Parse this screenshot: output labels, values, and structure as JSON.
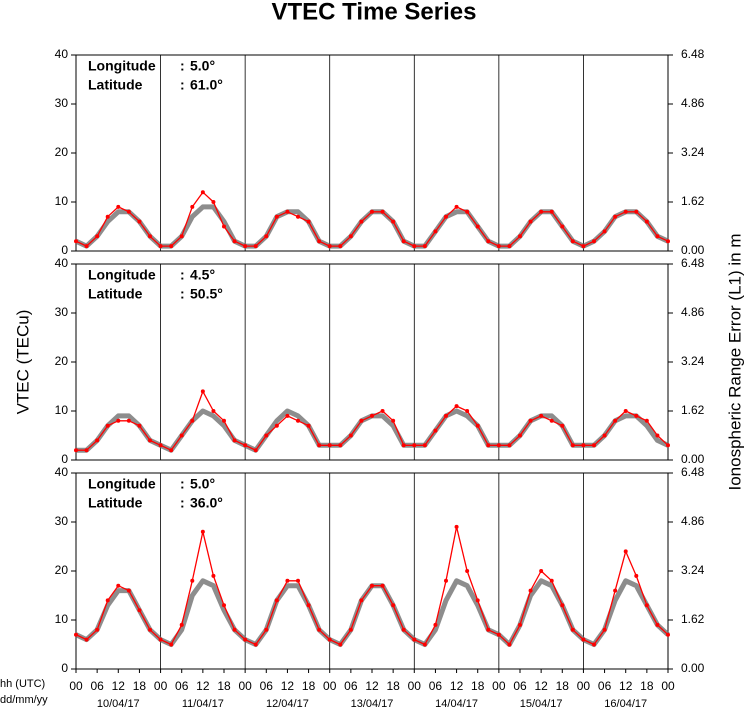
{
  "title": "VTEC Time Series",
  "y_label": "VTEC (TECu)",
  "y2_label": "Ionospheric Range Error (L1) in m",
  "x_axis": {
    "time_label": "hh (UTC)",
    "date_label": "dd/mm/yy",
    "xlim": [
      0,
      168
    ],
    "x": [
      0,
      3,
      6,
      9,
      12,
      15,
      18,
      21,
      24,
      27,
      30,
      33,
      36,
      39,
      42,
      45,
      48,
      51,
      54,
      57,
      60,
      63,
      66,
      69,
      72,
      75,
      78,
      81,
      84,
      87,
      90,
      93,
      96,
      99,
      102,
      105,
      108,
      111,
      114,
      117,
      120,
      123,
      126,
      129,
      132,
      135,
      138,
      141,
      144,
      147,
      150,
      153,
      156,
      159,
      162,
      165,
      168
    ],
    "xticks": [
      {
        "value": 0,
        "label": "00"
      },
      {
        "value": 6,
        "label": "06"
      },
      {
        "value": 12,
        "label": "12"
      },
      {
        "value": 18,
        "label": "18"
      },
      {
        "value": 24,
        "label": "00"
      },
      {
        "value": 30,
        "label": "06"
      },
      {
        "value": 36,
        "label": "12"
      },
      {
        "value": 42,
        "label": "18"
      },
      {
        "value": 48,
        "label": "00"
      },
      {
        "value": 54,
        "label": "06"
      },
      {
        "value": 60,
        "label": "12"
      },
      {
        "value": 66,
        "label": "18"
      },
      {
        "value": 72,
        "label": "00"
      },
      {
        "value": 78,
        "label": "06"
      },
      {
        "value": 84,
        "label": "12"
      },
      {
        "value": 90,
        "label": "18"
      },
      {
        "value": 96,
        "label": "00"
      },
      {
        "value": 102,
        "label": "06"
      },
      {
        "value": 108,
        "label": "12"
      },
      {
        "value": 114,
        "label": "18"
      },
      {
        "value": 120,
        "label": "00"
      },
      {
        "value": 126,
        "label": "06"
      },
      {
        "value": 132,
        "label": "12"
      },
      {
        "value": 138,
        "label": "18"
      },
      {
        "value": 144,
        "label": "00"
      },
      {
        "value": 150,
        "label": "06"
      },
      {
        "value": 156,
        "label": "12"
      },
      {
        "value": 162,
        "label": "18"
      },
      {
        "value": 168,
        "label": "00"
      }
    ],
    "dates": [
      {
        "value": 12,
        "label": "10/04/17"
      },
      {
        "value": 36,
        "label": "11/04/17"
      },
      {
        "value": 60,
        "label": "12/04/17"
      },
      {
        "value": 84,
        "label": "13/04/17"
      },
      {
        "value": 108,
        "label": "14/04/17"
      },
      {
        "value": 132,
        "label": "15/04/17"
      },
      {
        "value": 156,
        "label": "16/04/17"
      }
    ]
  },
  "chart_data": [
    {
      "type": "line",
      "annotations": [
        {
          "label": "Longitude",
          "sep": ":",
          "value": "5.0°"
        },
        {
          "label": "Latitude",
          "sep": ":",
          "value": "61.0°"
        }
      ],
      "ylim": [
        0,
        40
      ],
      "yticks": [
        0,
        10,
        20,
        30,
        40
      ],
      "y2lim": [
        0,
        6.48
      ],
      "y2ticks": [
        {
          "value": 0,
          "label": "0.00"
        },
        {
          "value": 1.62,
          "label": "1.62"
        },
        {
          "value": 3.24,
          "label": "3.24"
        },
        {
          "value": 4.86,
          "label": "4.86"
        },
        {
          "value": 6.48,
          "label": "6.48"
        }
      ],
      "series": [
        {
          "color": "#707070",
          "values": [
            2,
            1,
            3,
            6,
            8,
            8,
            6,
            3,
            1,
            1,
            3,
            7,
            9,
            9,
            6,
            2,
            1,
            1,
            3,
            7,
            8,
            8,
            6,
            2,
            1,
            1,
            3,
            6,
            8,
            8,
            6,
            2,
            1,
            1,
            4,
            7,
            8,
            8,
            5,
            2,
            1,
            1,
            3,
            6,
            8,
            8,
            5,
            2,
            1,
            2,
            4,
            7,
            8,
            8,
            6,
            3,
            2
          ]
        },
        {
          "color": "#ff0000",
          "values": [
            2,
            1,
            3,
            7,
            9,
            8,
            6,
            3,
            1,
            1,
            3,
            9,
            12,
            10,
            5,
            2,
            1,
            1,
            3,
            7,
            8,
            7,
            6,
            2,
            1,
            1,
            3,
            6,
            8,
            8,
            6,
            2,
            1,
            1,
            4,
            7,
            9,
            8,
            5,
            2,
            1,
            1,
            3,
            6,
            8,
            8,
            5,
            2,
            1,
            2,
            4,
            7,
            8,
            8,
            6,
            3,
            2
          ]
        }
      ]
    },
    {
      "type": "line",
      "annotations": [
        {
          "label": "Longitude",
          "sep": ":",
          "value": "4.5°"
        },
        {
          "label": "Latitude",
          "sep": ":",
          "value": "50.5°"
        }
      ],
      "ylim": [
        0,
        40
      ],
      "yticks": [
        0,
        10,
        20,
        30,
        40
      ],
      "y2lim": [
        0,
        6.48
      ],
      "y2ticks": [
        {
          "value": 0,
          "label": "0.00"
        },
        {
          "value": 1.62,
          "label": "1.62"
        },
        {
          "value": 3.24,
          "label": "3.24"
        },
        {
          "value": 4.86,
          "label": "4.86"
        },
        {
          "value": 6.48,
          "label": "6.48"
        }
      ],
      "series": [
        {
          "color": "#707070",
          "values": [
            2,
            2,
            4,
            7,
            9,
            9,
            7,
            4,
            3,
            2,
            5,
            8,
            10,
            9,
            7,
            4,
            3,
            2,
            5,
            8,
            10,
            9,
            7,
            3,
            3,
            3,
            5,
            8,
            9,
            9,
            7,
            3,
            3,
            3,
            6,
            9,
            10,
            9,
            7,
            3,
            3,
            3,
            5,
            8,
            9,
            9,
            7,
            3,
            3,
            3,
            5,
            8,
            9,
            9,
            7,
            4,
            3
          ]
        },
        {
          "color": "#ff0000",
          "values": [
            2,
            2,
            4,
            7,
            8,
            8,
            7,
            4,
            3,
            2,
            5,
            8,
            14,
            10,
            8,
            4,
            3,
            2,
            5,
            7,
            9,
            8,
            7,
            3,
            3,
            3,
            5,
            8,
            9,
            10,
            8,
            3,
            3,
            3,
            6,
            9,
            11,
            10,
            7,
            3,
            3,
            3,
            5,
            8,
            9,
            8,
            7,
            3,
            3,
            3,
            5,
            8,
            10,
            9,
            8,
            5,
            3
          ]
        }
      ]
    },
    {
      "type": "line",
      "annotations": [
        {
          "label": "Longitude",
          "sep": ":",
          "value": "5.0°"
        },
        {
          "label": "Latitude",
          "sep": ":",
          "value": "36.0°"
        }
      ],
      "ylim": [
        0,
        40
      ],
      "yticks": [
        0,
        10,
        20,
        30,
        40
      ],
      "y2lim": [
        0,
        6.48
      ],
      "y2ticks": [
        {
          "value": 0,
          "label": "0.00"
        },
        {
          "value": 1.62,
          "label": "1.62"
        },
        {
          "value": 3.24,
          "label": "3.24"
        },
        {
          "value": 4.86,
          "label": "4.86"
        },
        {
          "value": 6.48,
          "label": "6.48"
        }
      ],
      "series": [
        {
          "color": "#707070",
          "values": [
            7,
            6,
            8,
            13,
            16,
            16,
            12,
            8,
            6,
            5,
            8,
            15,
            18,
            17,
            12,
            8,
            6,
            5,
            8,
            14,
            17,
            17,
            13,
            8,
            6,
            5,
            8,
            14,
            17,
            17,
            13,
            8,
            6,
            5,
            8,
            14,
            18,
            17,
            13,
            8,
            7,
            5,
            9,
            15,
            18,
            17,
            13,
            8,
            6,
            5,
            8,
            14,
            18,
            17,
            13,
            9,
            7
          ]
        },
        {
          "color": "#ff0000",
          "values": [
            7,
            6,
            8,
            14,
            17,
            16,
            12,
            8,
            6,
            5,
            9,
            18,
            28,
            19,
            13,
            8,
            6,
            5,
            8,
            14,
            18,
            18,
            13,
            8,
            6,
            5,
            8,
            14,
            17,
            17,
            13,
            8,
            6,
            5,
            9,
            18,
            29,
            20,
            14,
            8,
            7,
            5,
            9,
            16,
            20,
            18,
            13,
            8,
            6,
            5,
            8,
            16,
            24,
            19,
            13,
            9,
            7
          ]
        }
      ]
    }
  ]
}
